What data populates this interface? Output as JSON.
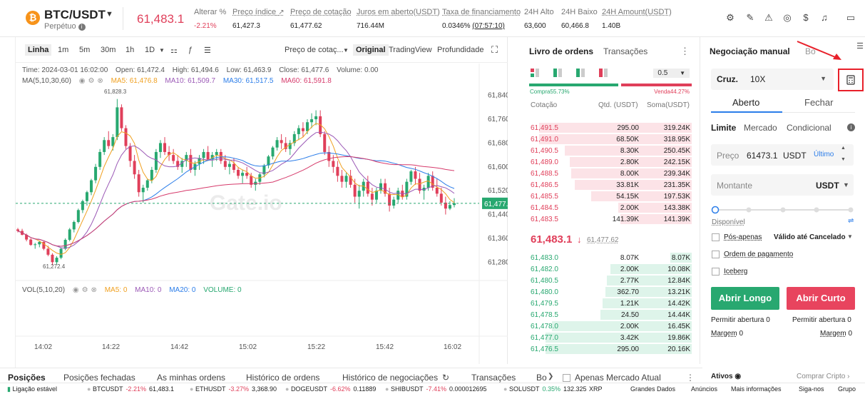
{
  "header": {
    "pair": "BTC/USDT",
    "contract_type": "Perpétuo",
    "last_price": "61,483.1",
    "stats": [
      {
        "label": "Alterar %",
        "value": "-2.21%",
        "neg": true,
        "underline": false
      },
      {
        "label": "Preço índice",
        "value": "61,427.3",
        "neg": false,
        "underline": true
      },
      {
        "label": "Preço de cotação",
        "value": "61,477.62",
        "neg": false,
        "underline": true
      },
      {
        "label": "Juros em aberto(USDT)",
        "value": "716.44M",
        "neg": false,
        "underline": true
      },
      {
        "label": "Taxa de financiamento",
        "value": "0.0346%",
        "value2": "(07:57:10)",
        "neg": false,
        "underline": true
      },
      {
        "label": "24H Alto",
        "value": "63,600",
        "neg": false,
        "underline": false
      },
      {
        "label": "24H Baixo",
        "value": "60,466.8",
        "neg": false,
        "underline": false
      },
      {
        "label": "24H Amount(USDT)",
        "value": "1.40B",
        "neg": false,
        "underline": true
      }
    ],
    "icons": [
      "sliders-icon",
      "edit-icon",
      "warning-icon",
      "compass-icon",
      "dollar-icon",
      "bell-icon",
      "layout-icon"
    ]
  },
  "chart_toolbar": {
    "views": [
      "Linha",
      "1m",
      "5m",
      "30m",
      "1h",
      "1D"
    ],
    "price_type": "Preço de cotaç...",
    "modes": [
      "Original",
      "TradingView",
      "Profundidade"
    ],
    "active_mode": "Original"
  },
  "chart_info": {
    "time": "Time: 2024-03-01 16:02:00",
    "open": "Open: 61,472.4",
    "high": "High: 61,494.6",
    "low": "Low: 61,463.9",
    "close": "Close: 61,477.6",
    "volume": "Volume: 0.00",
    "ma_label": "MA(5,10,30,60)",
    "ma5": "MA5: 61,476.8",
    "ma10": "MA10: 61,509.7",
    "ma30": "MA30: 61,517.5",
    "ma60": "MA60: 61,591.8",
    "vol_label": "VOL(5,10,20)",
    "vma5": "MA5: 0",
    "vma10": "MA10: 0",
    "vma20": "MA20: 0",
    "vvolume": "VOLUME: 0",
    "watermark": "Gate.io"
  },
  "chart_data": {
    "type": "line",
    "title": "",
    "x_ticks": [
      "14:02",
      "14:22",
      "14:42",
      "15:02",
      "15:22",
      "15:42",
      "16:02"
    ],
    "y_ticks": [
      "61,840.0",
      "61,760.0",
      "61,680.0",
      "61,600.0",
      "61,520.0",
      "61,440.0",
      "61,360.0",
      "61,280.0"
    ],
    "ylim": [
      61240,
      61880
    ],
    "current_price_label": "61,477.6",
    "current_price": 61477.6,
    "high_marker": "61,828.3",
    "low_marker": "61,272.4",
    "candles": [
      [
        61390,
        61395,
        61380,
        61385
      ],
      [
        61385,
        61392,
        61370,
        61372
      ],
      [
        61372,
        61376,
        61350,
        61356
      ],
      [
        61356,
        61360,
        61335,
        61338
      ],
      [
        61338,
        61345,
        61325,
        61340
      ],
      [
        61340,
        61352,
        61330,
        61348
      ],
      [
        61348,
        61350,
        61320,
        61325
      ],
      [
        61325,
        61335,
        61300,
        61305
      ],
      [
        61305,
        61310,
        61270,
        61280
      ],
      [
        61280,
        61300,
        61272,
        61295
      ],
      [
        61295,
        61330,
        61290,
        61325
      ],
      [
        61325,
        61360,
        61320,
        61355
      ],
      [
        61355,
        61395,
        61350,
        61390
      ],
      [
        61390,
        61420,
        61380,
        61415
      ],
      [
        61415,
        61460,
        61410,
        61455
      ],
      [
        61455,
        61490,
        61445,
        61485
      ],
      [
        61485,
        61520,
        61470,
        61515
      ],
      [
        61515,
        61560,
        61505,
        61555
      ],
      [
        61555,
        61610,
        61545,
        61600
      ],
      [
        61600,
        61660,
        61590,
        61650
      ],
      [
        61650,
        61700,
        61640,
        61690
      ],
      [
        61690,
        61720,
        61660,
        61670
      ],
      [
        61670,
        61710,
        61655,
        61700
      ],
      [
        61700,
        61828,
        61690,
        61800
      ],
      [
        61800,
        61810,
        61720,
        61730
      ],
      [
        61730,
        61740,
        61660,
        61670
      ],
      [
        61670,
        61680,
        61600,
        61620
      ],
      [
        61620,
        61640,
        61560,
        61575
      ],
      [
        61575,
        61590,
        61500,
        61515
      ],
      [
        61515,
        61540,
        61480,
        61530
      ],
      [
        61530,
        61560,
        61520,
        61555
      ],
      [
        61555,
        61600,
        61545,
        61590
      ],
      [
        61590,
        61660,
        61580,
        61650
      ],
      [
        61650,
        61690,
        61630,
        61680
      ],
      [
        61680,
        61700,
        61640,
        61650
      ],
      [
        61650,
        61670,
        61620,
        61640
      ],
      [
        61640,
        61660,
        61610,
        61620
      ],
      [
        61620,
        61640,
        61590,
        61600
      ],
      [
        61600,
        61630,
        61580,
        61620
      ],
      [
        61620,
        61650,
        61600,
        61640
      ],
      [
        61640,
        61660,
        61580,
        61590
      ],
      [
        61590,
        61620,
        61570,
        61610
      ],
      [
        61610,
        61640,
        61590,
        61630
      ],
      [
        61630,
        61660,
        61610,
        61650
      ],
      [
        61650,
        61670,
        61620,
        61625
      ],
      [
        61625,
        61650,
        61600,
        61640
      ],
      [
        61640,
        61660,
        61620,
        61650
      ],
      [
        61650,
        61660,
        61610,
        61620
      ],
      [
        61620,
        61640,
        61590,
        61600
      ],
      [
        61600,
        61620,
        61575,
        61610
      ],
      [
        61610,
        61630,
        61580,
        61590
      ],
      [
        61590,
        61600,
        61560,
        61570
      ],
      [
        61570,
        61590,
        61545,
        61580
      ],
      [
        61580,
        61600,
        61560,
        61570
      ],
      [
        61570,
        61580,
        61530,
        61540
      ],
      [
        61540,
        61560,
        61520,
        61550
      ],
      [
        61550,
        61580,
        61540,
        61575
      ],
      [
        61575,
        61610,
        61565,
        61605
      ],
      [
        61605,
        61640,
        61595,
        61635
      ],
      [
        61635,
        61670,
        61625,
        61665
      ],
      [
        61665,
        61700,
        61655,
        61690
      ],
      [
        61690,
        61710,
        61660,
        61680
      ],
      [
        61680,
        61700,
        61650,
        61660
      ],
      [
        61660,
        61690,
        61640,
        61680
      ],
      [
        61680,
        61720,
        61670,
        61710
      ],
      [
        61710,
        61740,
        61690,
        61730
      ],
      [
        61730,
        61750,
        61700,
        61720
      ],
      [
        61720,
        61760,
        61710,
        61750
      ],
      [
        61750,
        61780,
        61730,
        61760
      ],
      [
        61760,
        61790,
        61740,
        61770
      ],
      [
        61770,
        61790,
        61700,
        61710
      ],
      [
        61710,
        61720,
        61640,
        61650
      ],
      [
        61650,
        61670,
        61600,
        61620
      ],
      [
        61620,
        61640,
        61580,
        61600
      ],
      [
        61600,
        61620,
        61550,
        61570
      ],
      [
        61570,
        61590,
        61530,
        61550
      ],
      [
        61550,
        61580,
        61530,
        61570
      ],
      [
        61570,
        61590,
        61530,
        61540
      ],
      [
        61540,
        61560,
        61480,
        61500
      ],
      [
        61500,
        61540,
        61460,
        61520
      ],
      [
        61520,
        61560,
        61500,
        61550
      ],
      [
        61550,
        61570,
        61500,
        61510
      ],
      [
        61510,
        61530,
        61470,
        61490
      ],
      [
        61490,
        61530,
        61480,
        61520
      ],
      [
        61520,
        61560,
        61510,
        61545
      ],
      [
        61545,
        61560,
        61500,
        61510
      ],
      [
        61510,
        61530,
        61450,
        61470
      ],
      [
        61470,
        61500,
        61460,
        61490
      ],
      [
        61490,
        61530,
        61480,
        61520
      ],
      [
        61520,
        61540,
        61490,
        61500
      ],
      [
        61500,
        61560,
        61490,
        61550
      ],
      [
        61550,
        61590,
        61540,
        61585
      ],
      [
        61585,
        61600,
        61540,
        61560
      ],
      [
        61560,
        61580,
        61510,
        61520
      ],
      [
        61520,
        61540,
        61490,
        61530
      ],
      [
        61530,
        61580,
        61520,
        61570
      ],
      [
        61570,
        61585,
        61520,
        61530
      ],
      [
        61530,
        61560,
        61500,
        61510
      ],
      [
        61510,
        61530,
        61470,
        61480
      ],
      [
        61480,
        61500,
        61440,
        61460
      ],
      [
        61460,
        61485,
        61455,
        61472
      ],
      [
        61472,
        61495,
        61464,
        61478
      ]
    ]
  },
  "order_book": {
    "tabs": [
      "Livro de ordens",
      "Transações"
    ],
    "precision": "0.5",
    "buy_pct_label": "Compra55.73%",
    "sell_pct_label": "Venda44.27%",
    "buy_pct": 55.73,
    "headers": [
      "Cotação",
      "Qtd. (USDT)",
      "Soma(USDT)"
    ],
    "asks": [
      {
        "price": "61,491.5",
        "qty": "295.00",
        "sum": "319.24K",
        "depth": 0.94
      },
      {
        "price": "61,491.0",
        "qty": "68.50K",
        "sum": "318.95K",
        "depth": 0.94
      },
      {
        "price": "61,490.5",
        "qty": "8.30K",
        "sum": "250.45K",
        "depth": 0.78
      },
      {
        "price": "61,489.0",
        "qty": "2.80K",
        "sum": "242.15K",
        "depth": 0.75
      },
      {
        "price": "61,488.5",
        "qty": "8.00K",
        "sum": "239.34K",
        "depth": 0.74
      },
      {
        "price": "61,486.5",
        "qty": "33.81K",
        "sum": "231.35K",
        "depth": 0.72
      },
      {
        "price": "61,485.5",
        "qty": "54.15K",
        "sum": "197.53K",
        "depth": 0.62
      },
      {
        "price": "61,484.5",
        "qty": "2.00K",
        "sum": "143.38K",
        "depth": 0.45
      },
      {
        "price": "61,483.5",
        "qty": "141.39K",
        "sum": "141.39K",
        "depth": 0.44
      }
    ],
    "mid_price": "61,483.1",
    "mid_index": "61,477.62",
    "bids": [
      {
        "price": "61,483.0",
        "qty": "8.07K",
        "sum": "8.07K",
        "depth": 0.13
      },
      {
        "price": "61,482.0",
        "qty": "2.00K",
        "sum": "10.08K",
        "depth": 0.5
      },
      {
        "price": "61,480.5",
        "qty": "2.77K",
        "sum": "12.84K",
        "depth": 0.52
      },
      {
        "price": "61,480.0",
        "qty": "362.70",
        "sum": "13.21K",
        "depth": 0.53
      },
      {
        "price": "61,479.5",
        "qty": "1.21K",
        "sum": "14.42K",
        "depth": 0.55
      },
      {
        "price": "61,478.5",
        "qty": "24.50",
        "sum": "14.44K",
        "depth": 0.56
      },
      {
        "price": "61,478.0",
        "qty": "2.00K",
        "sum": "16.45K",
        "depth": 0.86
      },
      {
        "price": "61,477.0",
        "qty": "3.42K",
        "sum": "19.86K",
        "depth": 0.9
      },
      {
        "price": "61,476.5",
        "qty": "295.00",
        "sum": "20.16K",
        "depth": 0.9
      }
    ]
  },
  "trade_panel": {
    "tabs": [
      "Negociação manual",
      "Bo"
    ],
    "margin_mode": "Cruz.",
    "leverage": "10X",
    "open_tab": "Aberto",
    "close_tab": "Fechar",
    "order_types": [
      "Limite",
      "Mercado",
      "Condicional"
    ],
    "price_label": "Preço",
    "price_value": "61473.1",
    "price_unit": "USDT",
    "price_last": "Último",
    "amount_label": "Montante",
    "amount_unit": "USDT",
    "available_label": "Disponível",
    "post_only": "Pós-apenas",
    "tif": "Válido até Cancelado",
    "payment_order": "Ordem de pagamento",
    "iceberg": "Iceberg",
    "long_button": "Abrir Longo",
    "short_button": "Abrir Curto",
    "allow_open_left": "Permitir abertura",
    "allow_open_left_val": "0",
    "allow_open_right": "Permitir abertura",
    "allow_open_right_val": "0",
    "margin_left": "Margem",
    "margin_left_val": "0",
    "margin_right": "Margem",
    "margin_right_val": "0"
  },
  "bottom_tabs": [
    "Posições",
    "Posições fechadas",
    "As minhas ordens",
    "Histórico de ordens",
    "Histórico de negociações",
    "Transações",
    "Bo"
  ],
  "only_current": "Apenas Mercado Atual",
  "assets_label": "Ativos",
  "buy_crypto": "Comprar Cripto",
  "ticker": {
    "status": "Ligação estável",
    "items": [
      {
        "sym": "BTCUSDT",
        "chg": "-2.21%",
        "px": "61,483.1",
        "neg": true
      },
      {
        "sym": "ETHUSDT",
        "chg": "-3.27%",
        "px": "3,368.90",
        "neg": true
      },
      {
        "sym": "DOGEUSDT",
        "chg": "-6.62%",
        "px": "0.11889",
        "neg": true
      },
      {
        "sym": "SHIBUSDT",
        "chg": "-7.41%",
        "px": "0.000012695",
        "neg": true
      },
      {
        "sym": "SOLUSDT",
        "chg": "0.35%",
        "px": "132.325",
        "neg": false
      }
    ],
    "xrp": "XRP",
    "links": [
      "Grandes Dados",
      "Anúncios",
      "Mais informações",
      "Siga-nos",
      "Grupo"
    ]
  },
  "colors": {
    "up": "#28a870",
    "down": "#e03f5a",
    "ma5": "#f0a020",
    "ma10": "#9b59b6",
    "ma30": "#2b7de9",
    "ma60": "#d63a6b",
    "annotation": "#e8202a"
  }
}
